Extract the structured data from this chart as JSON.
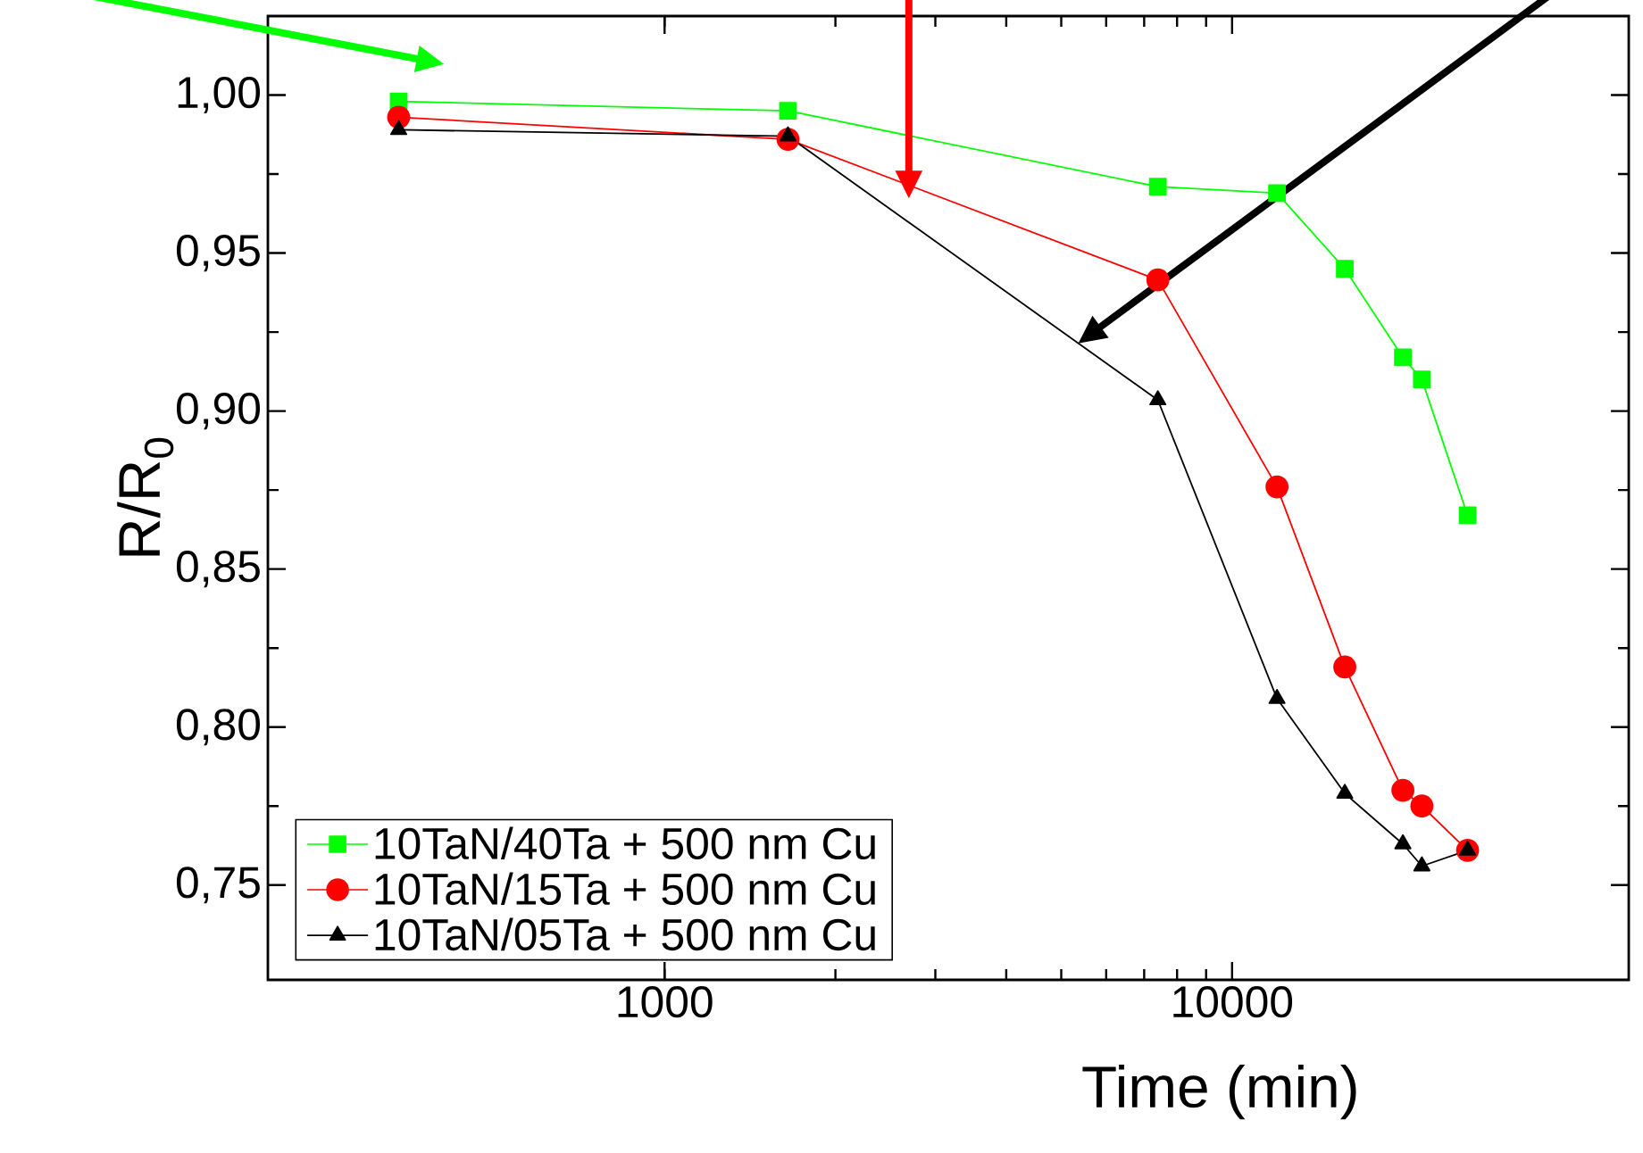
{
  "chart_data": {
    "type": "line",
    "xlabel": "Time (min)",
    "ylabel": "R/R$_{0}$",
    "log": "x",
    "xlim": [
      200,
      50000
    ],
    "ylim": [
      0.72,
      1.025
    ],
    "xticks": [
      1000,
      10000
    ],
    "yticks": [
      {
        "value": 0.75,
        "label": "0,75"
      },
      {
        "value": 0.8,
        "label": "0,80"
      },
      {
        "value": 0.85,
        "label": "0,85"
      },
      {
        "value": 0.9,
        "label": "0,90"
      },
      {
        "value": 0.95,
        "label": "0,95"
      },
      {
        "value": 1.0,
        "label": "1,00"
      }
    ],
    "x": [
      340,
      1650,
      7400,
      12000,
      15800,
      20000,
      21600,
      26000
    ],
    "legend": "bottom left",
    "line_style": "solid",
    "series": [
      {
        "name": "10TaN/40Ta + 500 nm Cu",
        "color": "#00ff00",
        "marker": "square",
        "values": [
          0.998,
          0.995,
          0.971,
          0.969,
          0.945,
          0.917,
          0.91,
          0.867
        ]
      },
      {
        "name": "10TaN/15Ta + 500 nm Cu",
        "color": "#ff0000",
        "marker": "circle",
        "values": [
          0.993,
          0.986,
          0.9415,
          0.876,
          0.819,
          0.78,
          0.775,
          0.761
        ]
      },
      {
        "name": "10TaN/05Ta + 500 nm Cu",
        "color": "#000000",
        "marker": "triangle",
        "values": [
          0.989,
          0.987,
          0.9035,
          0.809,
          0.779,
          0.763,
          0.756,
          0.761
        ]
      }
    ]
  }
}
